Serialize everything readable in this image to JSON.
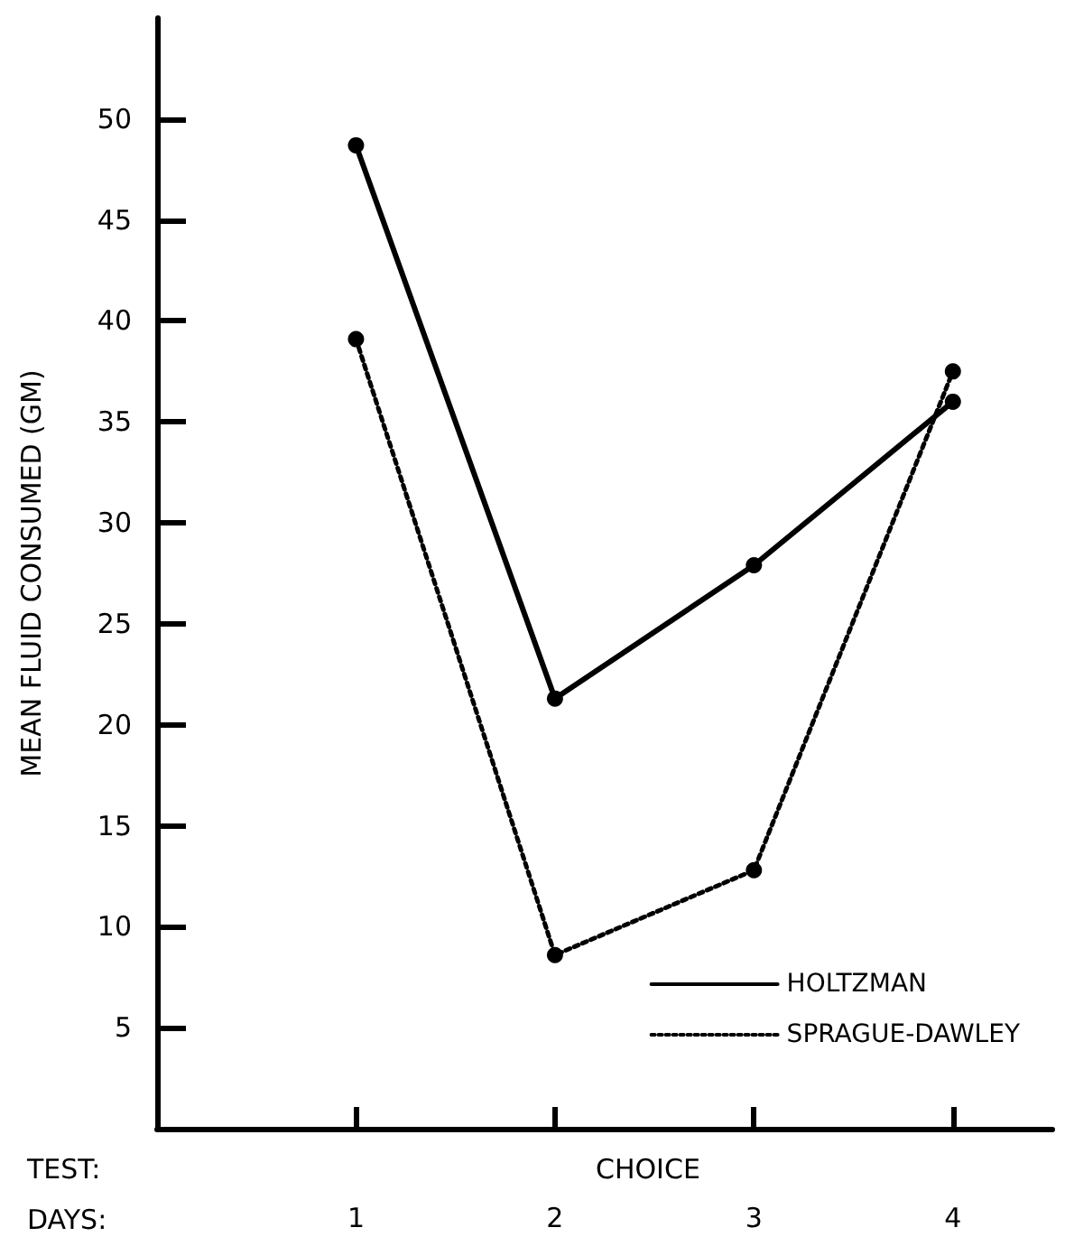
{
  "chart_data": {
    "type": "line",
    "xlabel": "DAYS:",
    "ylabel": "MEAN FLUID CONSUMED (GM)",
    "annotations": [
      "TEST:",
      "CHOICE"
    ],
    "x": [
      1,
      2,
      3,
      4
    ],
    "xlim": [
      0,
      4.5
    ],
    "xticks": [
      1,
      2,
      3,
      4
    ],
    "ylim": [
      0,
      55
    ],
    "yticks": [
      5,
      10,
      15,
      20,
      25,
      30,
      35,
      40,
      45,
      50
    ],
    "series": [
      {
        "name": "HOLTZMAN",
        "color": "#000000",
        "line_style": "solid",
        "values": [
          48.7,
          21.3,
          27.9,
          36.0
        ]
      },
      {
        "name": "SPRAGUE-DAWLEY",
        "color": "#000000",
        "line_style": "dotted",
        "values": [
          39.1,
          8.6,
          12.8,
          37.5
        ]
      }
    ],
    "marker": "circle",
    "grid": false,
    "legend": "bottom right"
  }
}
